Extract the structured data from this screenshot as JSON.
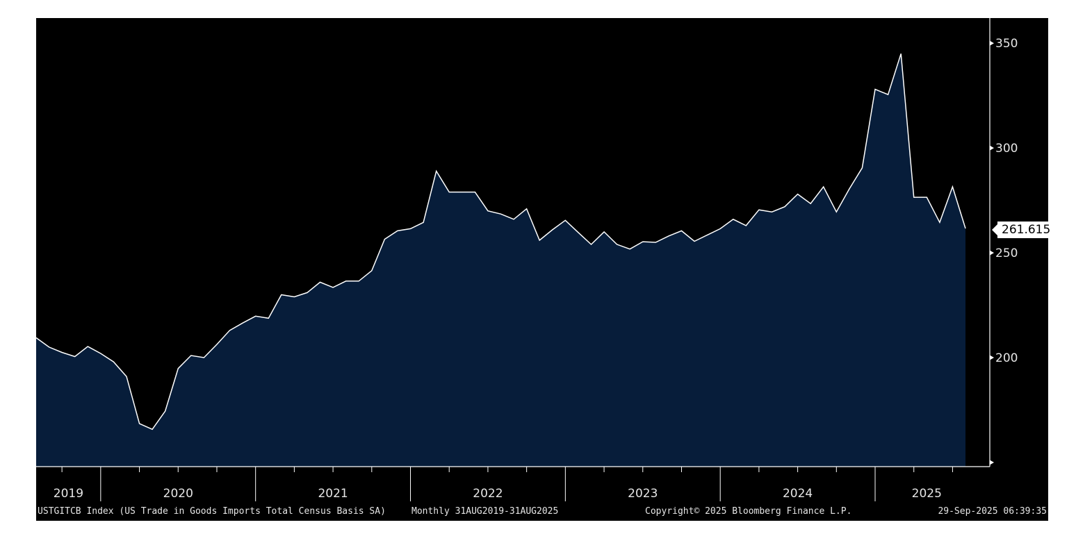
{
  "footer": {
    "description": "USTGITCB Index (US Trade in Goods Imports Total Census Basis SA)",
    "range": "Monthly 31AUG2019-31AUG2025",
    "copyright": "Copyright© 2025 Bloomberg Finance L.P.",
    "timestamp": "29-Sep-2025 06:39:35"
  },
  "last_value_label": "261.615",
  "colors": {
    "background": "#000000",
    "area_fill": "#071d3a",
    "line": "#ffffff",
    "text": "#e6e6e6"
  },
  "chart_data": {
    "type": "area",
    "title": "",
    "xlabel": "",
    "ylabel": "",
    "ylim": [
      148,
      362
    ],
    "y_ticks": [
      350,
      300,
      250,
      200
    ],
    "y_axis_position": "right",
    "years": [
      "2019",
      "2020",
      "2021",
      "2022",
      "2023",
      "2024",
      "2025"
    ],
    "x": [
      "2019-08",
      "2019-09",
      "2019-10",
      "2019-11",
      "2019-12",
      "2020-01",
      "2020-02",
      "2020-03",
      "2020-04",
      "2020-05",
      "2020-06",
      "2020-07",
      "2020-08",
      "2020-09",
      "2020-10",
      "2020-11",
      "2020-12",
      "2021-01",
      "2021-02",
      "2021-03",
      "2021-04",
      "2021-05",
      "2021-06",
      "2021-07",
      "2021-08",
      "2021-09",
      "2021-10",
      "2021-11",
      "2021-12",
      "2022-01",
      "2022-02",
      "2022-03",
      "2022-04",
      "2022-05",
      "2022-06",
      "2022-07",
      "2022-08",
      "2022-09",
      "2022-10",
      "2022-11",
      "2022-12",
      "2023-01",
      "2023-02",
      "2023-03",
      "2023-04",
      "2023-05",
      "2023-06",
      "2023-07",
      "2023-08",
      "2023-09",
      "2023-10",
      "2023-11",
      "2023-12",
      "2024-01",
      "2024-02",
      "2024-03",
      "2024-04",
      "2024-05",
      "2024-06",
      "2024-07",
      "2024-08",
      "2024-09",
      "2024-10",
      "2024-11",
      "2024-12",
      "2025-01",
      "2025-02",
      "2025-03",
      "2025-04",
      "2025-05",
      "2025-06",
      "2025-07",
      "2025-08"
    ],
    "series": [
      {
        "name": "",
        "values": [
          209.5,
          205,
          202.5,
          200.5,
          205.3,
          202,
          198,
          191,
          168.5,
          165.8,
          174.5,
          194.8,
          201,
          200,
          206.3,
          213,
          216.5,
          219.8,
          218.8,
          230,
          229,
          231,
          236,
          233.5,
          236.5,
          236.5,
          241.5,
          256.5,
          260.5,
          261.5,
          264.5,
          289,
          279,
          279,
          279,
          270,
          268.5,
          266,
          271,
          256,
          261,
          265.5,
          259.7,
          254,
          260,
          254,
          251.8,
          255.3,
          255,
          258,
          260.5,
          255.5,
          258.5,
          261.5,
          266,
          263,
          270.5,
          269.5,
          272,
          278,
          273.5,
          281.5,
          269.5,
          280.5,
          290.5,
          328,
          325.5,
          345,
          276.5,
          276.5,
          264.5,
          281.5,
          261.615
        ]
      }
    ]
  }
}
